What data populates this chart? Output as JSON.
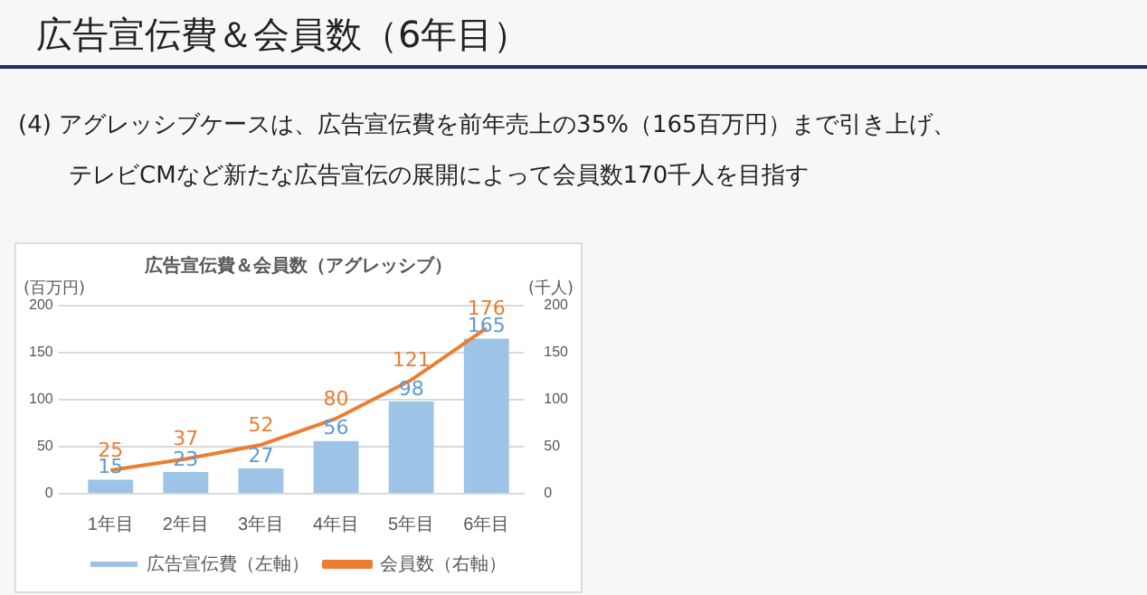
{
  "chart_data": {
    "type": "bar",
    "title": "広告宣伝費＆会員数（アグレッシブ）",
    "annotations": [
      "広告宣伝費＆会員数（6年目）",
      "(4)  アグレッシブケースは、広告宣伝費を前年売上の35%（165百万円）まで引き上げ、",
      "テレビCMなど新たな広告宣伝の展開によって会員数170千人を目指す"
    ],
    "ylabel": "(百万円)",
    "y2label": "(千人)",
    "categories": [
      "1年目",
      "2年目",
      "3年目",
      "4年目",
      "5年目",
      "6年目"
    ],
    "series": [
      {
        "name": "広告宣伝費（左軸）",
        "type": "bar",
        "color": "#9dc3e6",
        "values": [
          15,
          23,
          27,
          56,
          98,
          165
        ]
      },
      {
        "name": "会員数（右軸）",
        "type": "line",
        "axis": "y2",
        "color": "#ed7d31",
        "values": [
          25,
          37,
          52,
          80,
          121,
          176
        ]
      }
    ],
    "ylim": [
      0,
      200
    ],
    "yticks": [
      0,
      50,
      100,
      150,
      200
    ],
    "y2lim": [
      0,
      200
    ],
    "y2ticks": [
      0,
      50,
      100,
      150,
      200
    ],
    "grid": "y",
    "legend": "bottom",
    "data_labels": true,
    "marker": "none"
  }
}
